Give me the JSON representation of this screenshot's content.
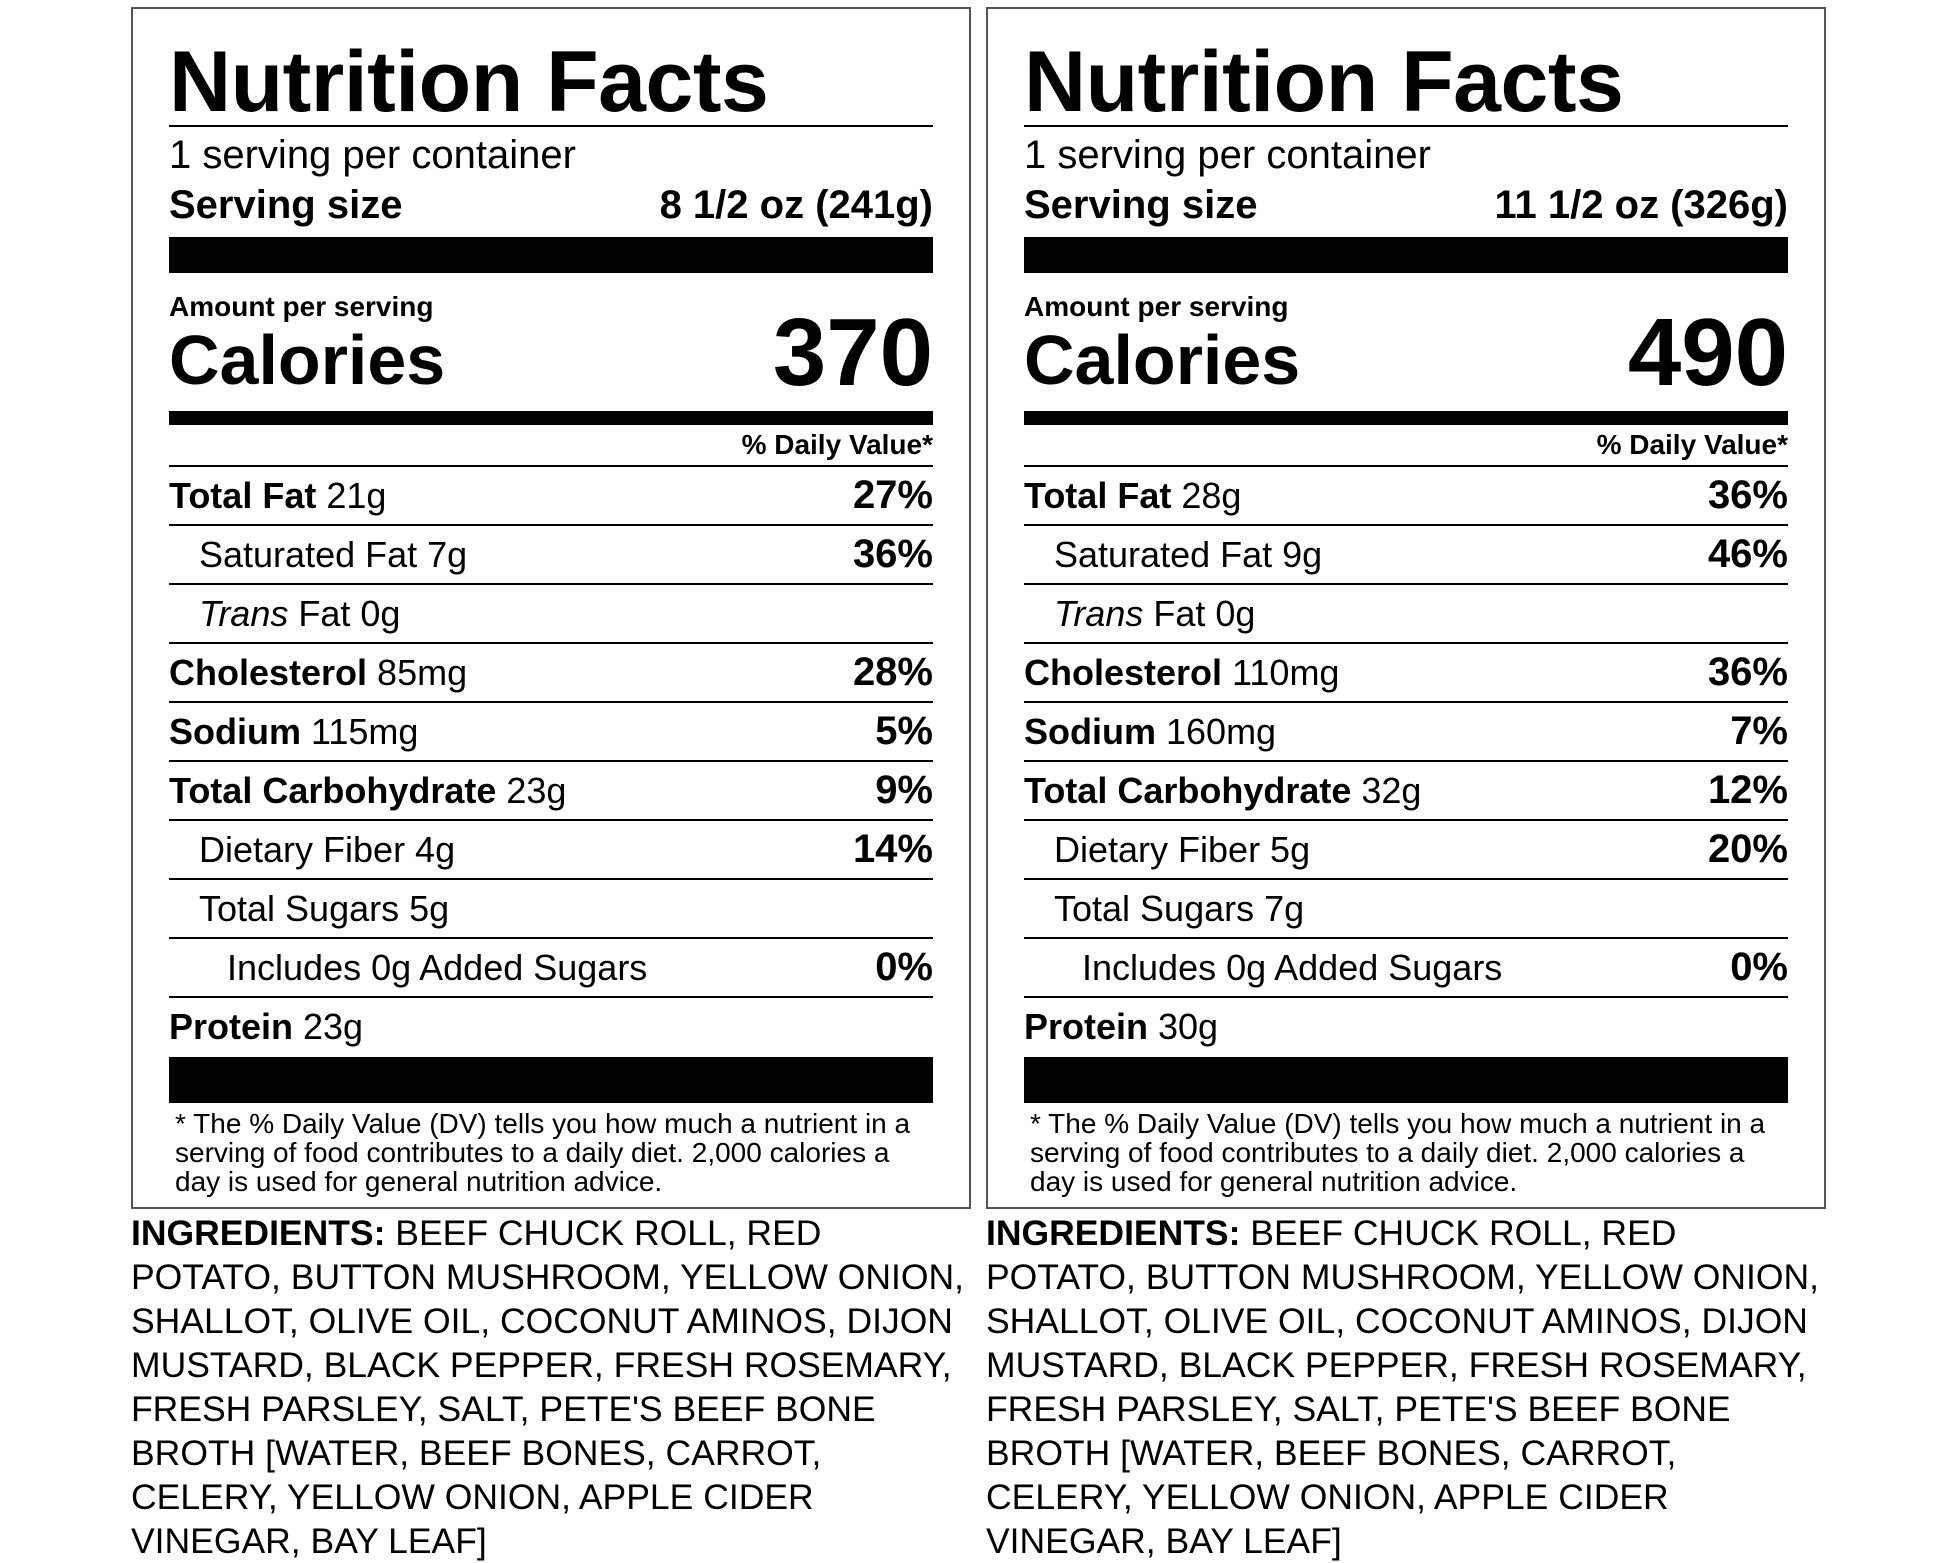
{
  "labels": [
    {
      "title": "Nutrition Facts",
      "servings_per_container": "1 serving per container",
      "serving_size_label": "Serving size",
      "serving_size_value": "8 1/2 oz (241g)",
      "amount_per_serving": "Amount per serving",
      "calories_label": "Calories",
      "calories_value": "370",
      "dv_header": "% Daily Value*",
      "total_fat_label": "Total Fat",
      "total_fat_amount": " 21g",
      "total_fat_pct": "27%",
      "sat_fat_label": "Saturated Fat 7g",
      "sat_fat_pct": "36%",
      "trans_fat_label": "Trans",
      "trans_fat_rest": " Fat 0g",
      "cholesterol_label": "Cholesterol",
      "cholesterol_amount": " 85mg",
      "cholesterol_pct": "28%",
      "sodium_label": "Sodium",
      "sodium_amount": " 115mg",
      "sodium_pct": "5%",
      "carb_label": "Total Carbohydrate",
      "carb_amount": " 23g",
      "carb_pct": "9%",
      "fiber_label": "Dietary Fiber 4g",
      "fiber_pct": "14%",
      "sugars_label": "Total Sugars 5g",
      "added_sugars_label": "Includes 0g Added Sugars",
      "added_sugars_pct": "0%",
      "protein_label": "Protein",
      "protein_amount": " 23g",
      "footnote": "* The % Daily Value (DV) tells you how much a nutrient in a serving of food contributes to a daily diet. 2,000 calories a day is used for general nutrition advice.",
      "ingredients_heading": "INGREDIENTS:",
      "ingredients_text": " BEEF CHUCK ROLL, RED POTATO, BUTTON MUSHROOM, YELLOW ONION, SHALLOT, OLIVE OIL, COCONUT AMINOS, DIJON MUSTARD, BLACK PEPPER, FRESH ROSEMARY, FRESH PARSLEY, SALT, PETE'S BEEF BONE BROTH [WATER, BEEF BONES, CARROT, CELERY, YELLOW ONION, APPLE CIDER VINEGAR, BAY LEAF]"
    },
    {
      "title": "Nutrition Facts",
      "servings_per_container": "1 serving per container",
      "serving_size_label": "Serving size",
      "serving_size_value": "11 1/2 oz (326g)",
      "amount_per_serving": "Amount per serving",
      "calories_label": "Calories",
      "calories_value": "490",
      "dv_header": "% Daily Value*",
      "total_fat_label": "Total Fat",
      "total_fat_amount": " 28g",
      "total_fat_pct": "36%",
      "sat_fat_label": "Saturated Fat 9g",
      "sat_fat_pct": "46%",
      "trans_fat_label": "Trans",
      "trans_fat_rest": " Fat 0g",
      "cholesterol_label": "Cholesterol",
      "cholesterol_amount": " 110mg",
      "cholesterol_pct": "36%",
      "sodium_label": "Sodium",
      "sodium_amount": " 160mg",
      "sodium_pct": "7%",
      "carb_label": "Total Carbohydrate",
      "carb_amount": " 32g",
      "carb_pct": "12%",
      "fiber_label": "Dietary Fiber 5g",
      "fiber_pct": "20%",
      "sugars_label": "Total Sugars 7g",
      "added_sugars_label": "Includes 0g Added Sugars",
      "added_sugars_pct": "0%",
      "protein_label": "Protein",
      "protein_amount": " 30g",
      "footnote": "* The % Daily Value (DV) tells you how much a nutrient in a serving of food contributes to a daily diet. 2,000 calories a day is used for general nutrition advice.",
      "ingredients_heading": "INGREDIENTS:",
      "ingredients_text": " BEEF CHUCK ROLL, RED POTATO, BUTTON MUSHROOM, YELLOW ONION, SHALLOT, OLIVE OIL, COCONUT AMINOS, DIJON MUSTARD, BLACK PEPPER, FRESH ROSEMARY, FRESH PARSLEY, SALT, PETE'S BEEF BONE BROTH [WATER, BEEF BONES, CARROT, CELERY, YELLOW ONION, APPLE CIDER VINEGAR, BAY LEAF]"
    }
  ]
}
